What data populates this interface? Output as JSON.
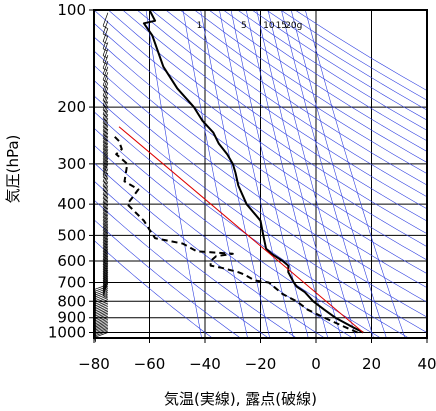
{
  "chart_data": {
    "type": "line",
    "title": "",
    "xlabel": "気温(実線), 露点(破線)",
    "ylabel": "気圧(hPa)",
    "xlim": [
      -80,
      40
    ],
    "ylim": [
      1040,
      100
    ],
    "y_scale": "log",
    "grid": true,
    "x_ticks": [
      -80,
      -60,
      -40,
      -20,
      0,
      20,
      40
    ],
    "x_tick_labels": [
      "−80",
      "−60",
      "−40",
      "−20",
      "0",
      "20",
      "40"
    ],
    "y_ticks": [
      100,
      200,
      300,
      400,
      500,
      600,
      700,
      800,
      900,
      1000
    ],
    "y_tick_labels": [
      "100",
      "200",
      "300",
      "400",
      "500",
      "600",
      "700",
      "800",
      "900",
      "1000"
    ],
    "mixing_ratio_labels": [
      "1",
      "5",
      "10",
      "15",
      "20g"
    ],
    "mixing_ratio_label_temps": [
      -42,
      -26,
      -17,
      -12.5,
      -8
    ],
    "series": [
      {
        "style": "solid",
        "color": "#000000",
        "points": [
          [
            17,
            1000
          ],
          [
            12,
            950
          ],
          [
            7,
            900
          ],
          [
            3,
            850
          ],
          [
            -1,
            800
          ],
          [
            -4,
            750
          ],
          [
            -7,
            720
          ],
          [
            -8,
            700
          ],
          [
            -10,
            650
          ],
          [
            -10,
            620
          ],
          [
            -12,
            600
          ],
          [
            -16,
            570
          ],
          [
            -18,
            550
          ],
          [
            -19,
            500
          ],
          [
            -20,
            450
          ],
          [
            -25,
            400
          ],
          [
            -28,
            350
          ],
          [
            -29,
            320
          ],
          [
            -30,
            300
          ],
          [
            -32,
            280
          ],
          [
            -35,
            260
          ],
          [
            -37,
            240
          ],
          [
            -41,
            220
          ],
          [
            -44,
            200
          ],
          [
            -50,
            175
          ],
          [
            -55,
            150
          ],
          [
            -59,
            120
          ],
          [
            -62,
            110
          ],
          [
            -58,
            108
          ],
          [
            -60,
            100
          ]
        ]
      },
      {
        "style": "dashed",
        "color": "#000000",
        "points": [
          [
            15,
            1000
          ],
          [
            9,
            950
          ],
          [
            3,
            900
          ],
          [
            -3,
            850
          ],
          [
            -7,
            800
          ],
          [
            -12,
            760
          ],
          [
            -17,
            700
          ],
          [
            -22,
            690
          ],
          [
            -26,
            660
          ],
          [
            -28,
            650
          ],
          [
            -34,
            630
          ],
          [
            -38,
            620
          ],
          [
            -38,
            600
          ],
          [
            -36,
            580
          ],
          [
            -30,
            570
          ],
          [
            -43,
            560
          ],
          [
            -48,
            530
          ],
          [
            -58,
            510
          ],
          [
            -60,
            480
          ],
          [
            -62,
            450
          ],
          [
            -68,
            400
          ],
          [
            -66,
            380
          ],
          [
            -64,
            360
          ],
          [
            -69,
            340
          ],
          [
            -68,
            300
          ],
          [
            -72,
            280
          ],
          [
            -70,
            270
          ],
          [
            -71,
            255
          ],
          [
            -73,
            245
          ]
        ]
      },
      {
        "style": "solid",
        "color": "#dd0000",
        "points": [
          [
            17,
            1000
          ],
          [
            -71,
            230
          ]
        ]
      }
    ]
  }
}
